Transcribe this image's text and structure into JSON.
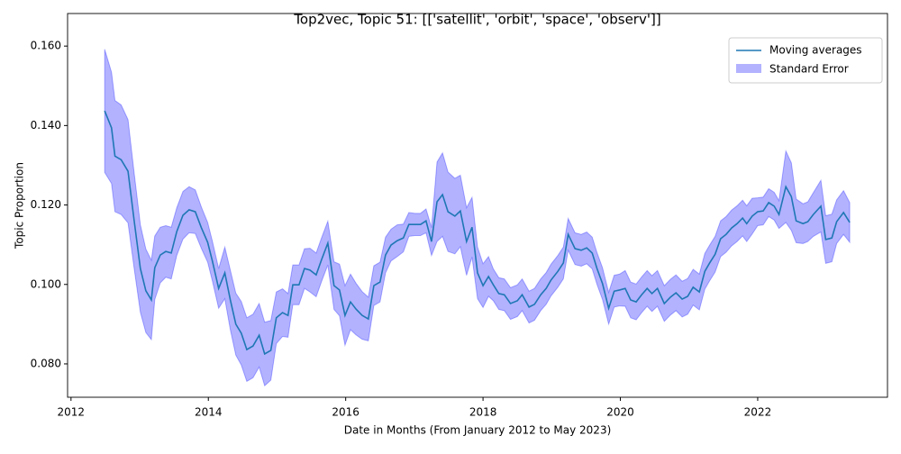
{
  "chart_data": {
    "type": "line",
    "title": "Top2vec, Topic 51: [['satellit', 'orbit', 'space', 'observ']]",
    "xlabel": "Date in Months (From January 2012 to May 2023)",
    "ylabel": "Topic Proportion",
    "x": [
      2012.49,
      2012.59,
      2012.64,
      2012.73,
      2012.83,
      2012.92,
      2013.01,
      2013.09,
      2013.17,
      2013.22,
      2013.3,
      2013.38,
      2013.46,
      2013.54,
      2013.63,
      2013.72,
      2013.81,
      2013.9,
      2013.99,
      2014.06,
      2014.15,
      2014.24,
      2014.32,
      2014.4,
      2014.48,
      2014.56,
      2014.65,
      2014.74,
      2014.82,
      2014.91,
      2014.99,
      2015.08,
      2015.16,
      2015.23,
      2015.32,
      2015.4,
      2015.48,
      2015.57,
      2015.65,
      2015.74,
      2015.83,
      2015.91,
      2015.99,
      2016.07,
      2016.15,
      2016.24,
      2016.33,
      2016.41,
      2016.5,
      2016.58,
      2016.66,
      2016.75,
      2016.84,
      2016.92,
      2017.01,
      2017.09,
      2017.17,
      2017.25,
      2017.33,
      2017.41,
      2017.49,
      2017.59,
      2017.67,
      2017.76,
      2017.84,
      2017.92,
      2018.0,
      2018.08,
      2018.15,
      2018.23,
      2018.31,
      2018.4,
      2018.5,
      2018.57,
      2018.67,
      2018.75,
      2018.84,
      2018.92,
      2018.99,
      2019.09,
      2019.17,
      2019.24,
      2019.34,
      2019.43,
      2019.51,
      2019.59,
      2019.66,
      2019.74,
      2019.83,
      2019.91,
      2019.99,
      2020.07,
      2020.15,
      2020.23,
      2020.31,
      2020.39,
      2020.46,
      2020.54,
      2020.64,
      2020.73,
      2020.81,
      2020.9,
      2020.98,
      2021.06,
      2021.15,
      2021.23,
      2021.3,
      2021.38,
      2021.46,
      2021.54,
      2021.62,
      2021.7,
      2021.78,
      2021.84,
      2021.92,
      2022.0,
      2022.08,
      2022.16,
      2022.24,
      2022.31,
      2022.41,
      2022.49,
      2022.56,
      2022.66,
      2022.73,
      2022.81,
      2022.92,
      2022.99,
      2023.08,
      2023.15,
      2023.25,
      2023.34
    ],
    "series": [
      {
        "name": "Moving averages",
        "color": "#1f77b4",
        "values": [
          0.1437,
          0.1394,
          0.1323,
          0.1314,
          0.1285,
          0.116,
          0.104,
          0.0984,
          0.0961,
          0.1042,
          0.1074,
          0.1083,
          0.1079,
          0.1133,
          0.1174,
          0.1188,
          0.1183,
          0.1142,
          0.1106,
          0.1058,
          0.099,
          0.1029,
          0.0961,
          0.09,
          0.0877,
          0.0836,
          0.0845,
          0.0872,
          0.0825,
          0.0834,
          0.0916,
          0.0929,
          0.0922,
          0.0999,
          0.0999,
          0.104,
          0.1036,
          0.1024,
          0.1063,
          0.1104,
          0.0997,
          0.0986,
          0.0922,
          0.0956,
          0.0938,
          0.0922,
          0.0913,
          0.0997,
          0.1006,
          0.1074,
          0.1099,
          0.111,
          0.1117,
          0.1151,
          0.1151,
          0.1151,
          0.116,
          0.1108,
          0.1208,
          0.1226,
          0.1183,
          0.1172,
          0.1185,
          0.1108,
          0.1144,
          0.1029,
          0.0997,
          0.102,
          0.0999,
          0.0977,
          0.0974,
          0.0952,
          0.0959,
          0.0974,
          0.0943,
          0.095,
          0.0974,
          0.099,
          0.1011,
          0.1033,
          0.1054,
          0.1126,
          0.109,
          0.1086,
          0.1092,
          0.1079,
          0.104,
          0.1002,
          0.094,
          0.0983,
          0.0986,
          0.099,
          0.0961,
          0.0956,
          0.0974,
          0.099,
          0.0977,
          0.099,
          0.0952,
          0.0968,
          0.0979,
          0.0963,
          0.097,
          0.0993,
          0.0981,
          0.1033,
          0.1054,
          0.1076,
          0.1115,
          0.1126,
          0.1142,
          0.1153,
          0.1167,
          0.1153,
          0.1172,
          0.1183,
          0.1185,
          0.1206,
          0.1197,
          0.1176,
          0.1246,
          0.1221,
          0.116,
          0.1153,
          0.1158,
          0.1176,
          0.1197,
          0.1113,
          0.1117,
          0.1158,
          0.1181,
          0.1156
        ]
      },
      {
        "name": "Standard Error",
        "color": "#0000ff",
        "errors": [
          0.0155,
          0.014,
          0.014,
          0.0138,
          0.013,
          0.012,
          0.011,
          0.0105,
          0.01,
          0.008,
          0.007,
          0.0065,
          0.0065,
          0.006,
          0.006,
          0.0058,
          0.0055,
          0.0052,
          0.005,
          0.005,
          0.005,
          0.0065,
          0.0075,
          0.0078,
          0.008,
          0.008,
          0.008,
          0.008,
          0.008,
          0.0075,
          0.0065,
          0.006,
          0.0055,
          0.005,
          0.005,
          0.005,
          0.0055,
          0.0055,
          0.0055,
          0.0055,
          0.006,
          0.0065,
          0.0075,
          0.007,
          0.0065,
          0.006,
          0.0055,
          0.005,
          0.005,
          0.0045,
          0.004,
          0.004,
          0.0035,
          0.003,
          0.0028,
          0.0028,
          0.003,
          0.0035,
          0.01,
          0.0105,
          0.01,
          0.0095,
          0.009,
          0.0085,
          0.0075,
          0.0065,
          0.0055,
          0.005,
          0.004,
          0.004,
          0.004,
          0.004,
          0.004,
          0.004,
          0.004,
          0.004,
          0.004,
          0.004,
          0.004,
          0.004,
          0.004,
          0.004,
          0.004,
          0.004,
          0.004,
          0.004,
          0.004,
          0.004,
          0.004,
          0.004,
          0.004,
          0.0045,
          0.0045,
          0.0045,
          0.0045,
          0.0045,
          0.0045,
          0.0045,
          0.0045,
          0.0045,
          0.0045,
          0.0045,
          0.0045,
          0.0045,
          0.0045,
          0.0045,
          0.0045,
          0.0045,
          0.0045,
          0.0045,
          0.0045,
          0.0045,
          0.0045,
          0.0045,
          0.0045,
          0.0035,
          0.0035,
          0.0035,
          0.0035,
          0.0035,
          0.009,
          0.0085,
          0.0055,
          0.005,
          0.005,
          0.0055,
          0.0065,
          0.006,
          0.006,
          0.0055,
          0.0055,
          0.005
        ]
      }
    ],
    "xlim": [
      2011.95,
      2023.89
    ],
    "xticks": [
      2012,
      2014,
      2016,
      2018,
      2020,
      2022
    ],
    "ylim": [
      0.0716,
      0.1682
    ],
    "yticks": [
      {
        "value": 0.08,
        "label": "0.080"
      },
      {
        "value": 0.1,
        "label": "0.100"
      },
      {
        "value": 0.12,
        "label": "0.120"
      },
      {
        "value": 0.14,
        "label": "0.140"
      },
      {
        "value": 0.16,
        "label": "0.160"
      }
    ],
    "legend": "upper right"
  }
}
